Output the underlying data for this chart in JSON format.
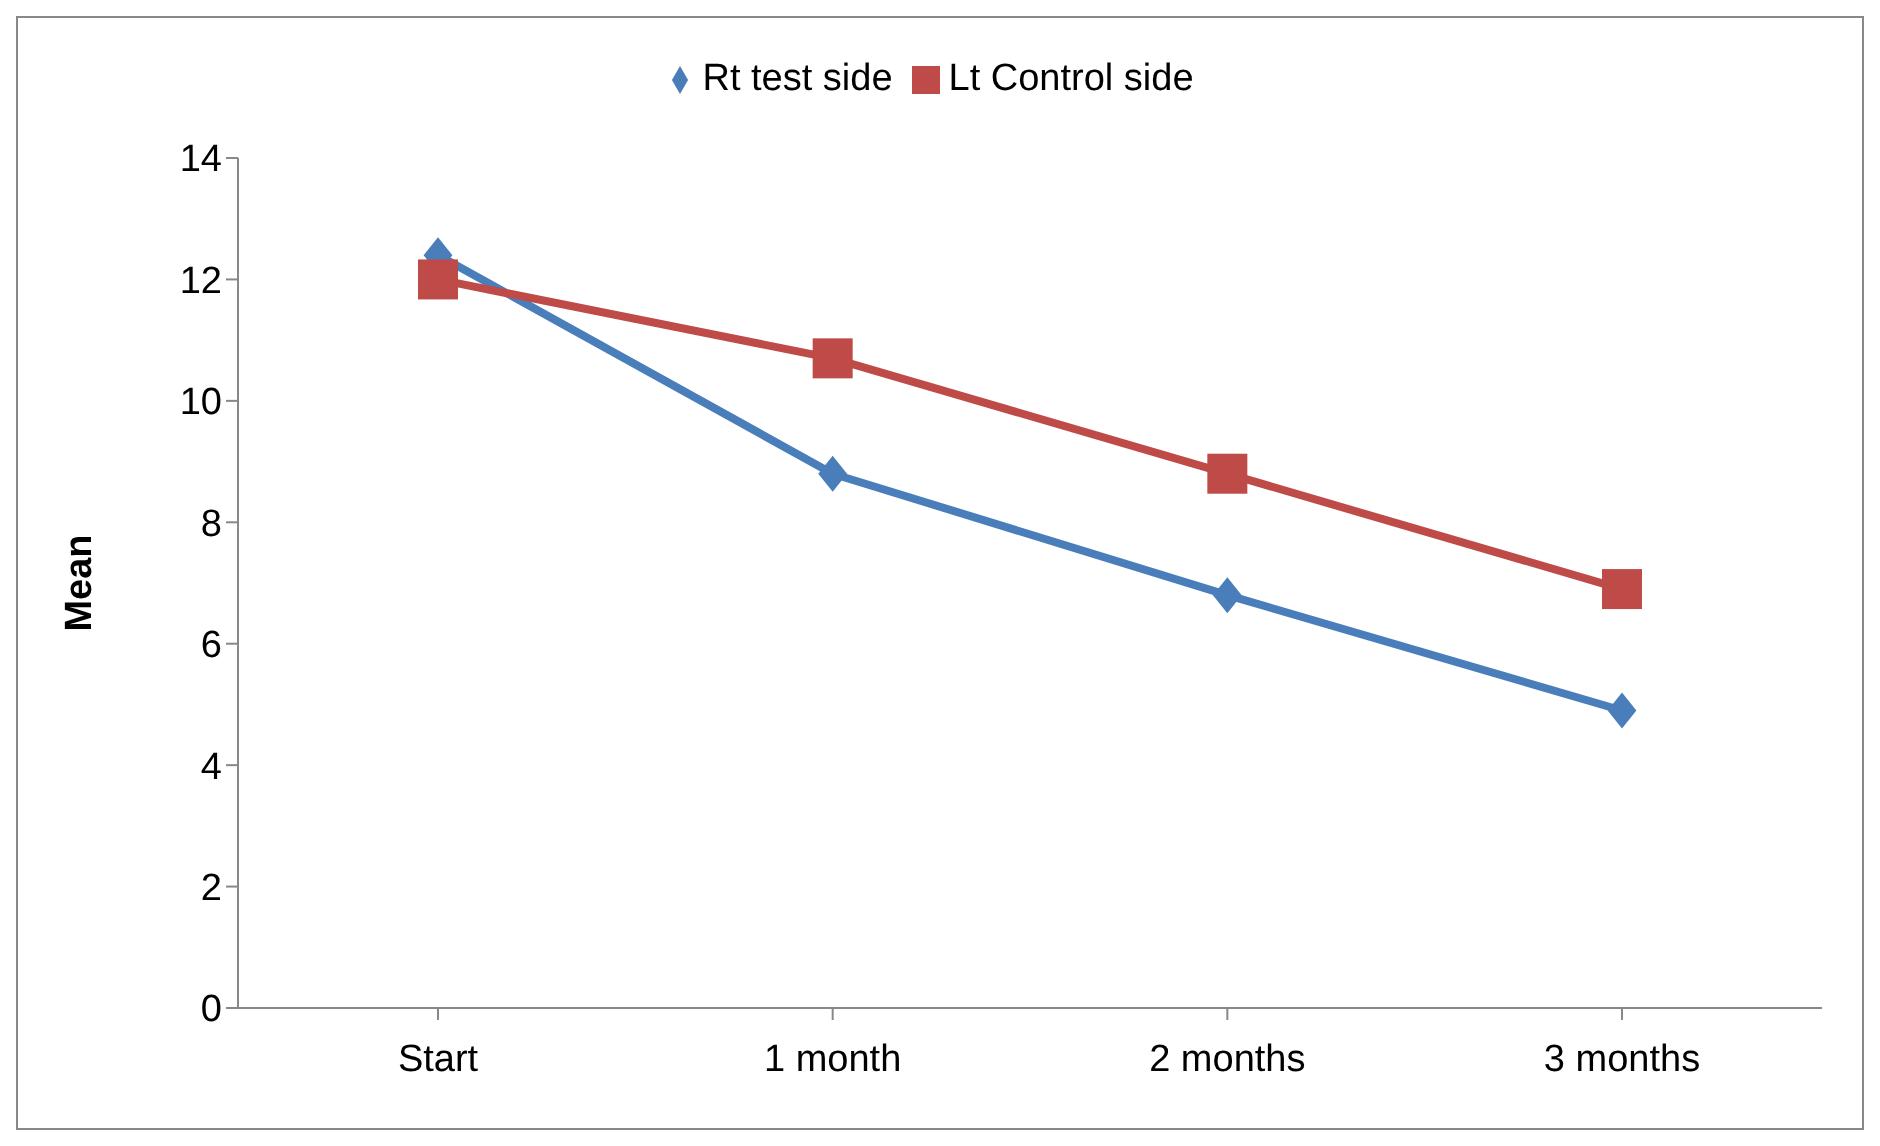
{
  "chart_data": {
    "type": "line",
    "ylabel": "Mean",
    "categories": [
      "Start",
      "1 month",
      "2 months",
      "3 months"
    ],
    "series": [
      {
        "name": "Rt test side",
        "color": "#4a7ebb",
        "marker": "diamond",
        "values": [
          12.4,
          8.8,
          6.8,
          4.9
        ]
      },
      {
        "name": "Lt Control side",
        "color": "#be4b48",
        "marker": "square",
        "values": [
          12.0,
          10.7,
          8.8,
          6.9
        ]
      }
    ],
    "ylim": [
      0,
      14
    ],
    "yticks": [
      0,
      2,
      4,
      6,
      8,
      10,
      12,
      14
    ],
    "grid": false,
    "legend": "top",
    "line_style": "solid"
  }
}
